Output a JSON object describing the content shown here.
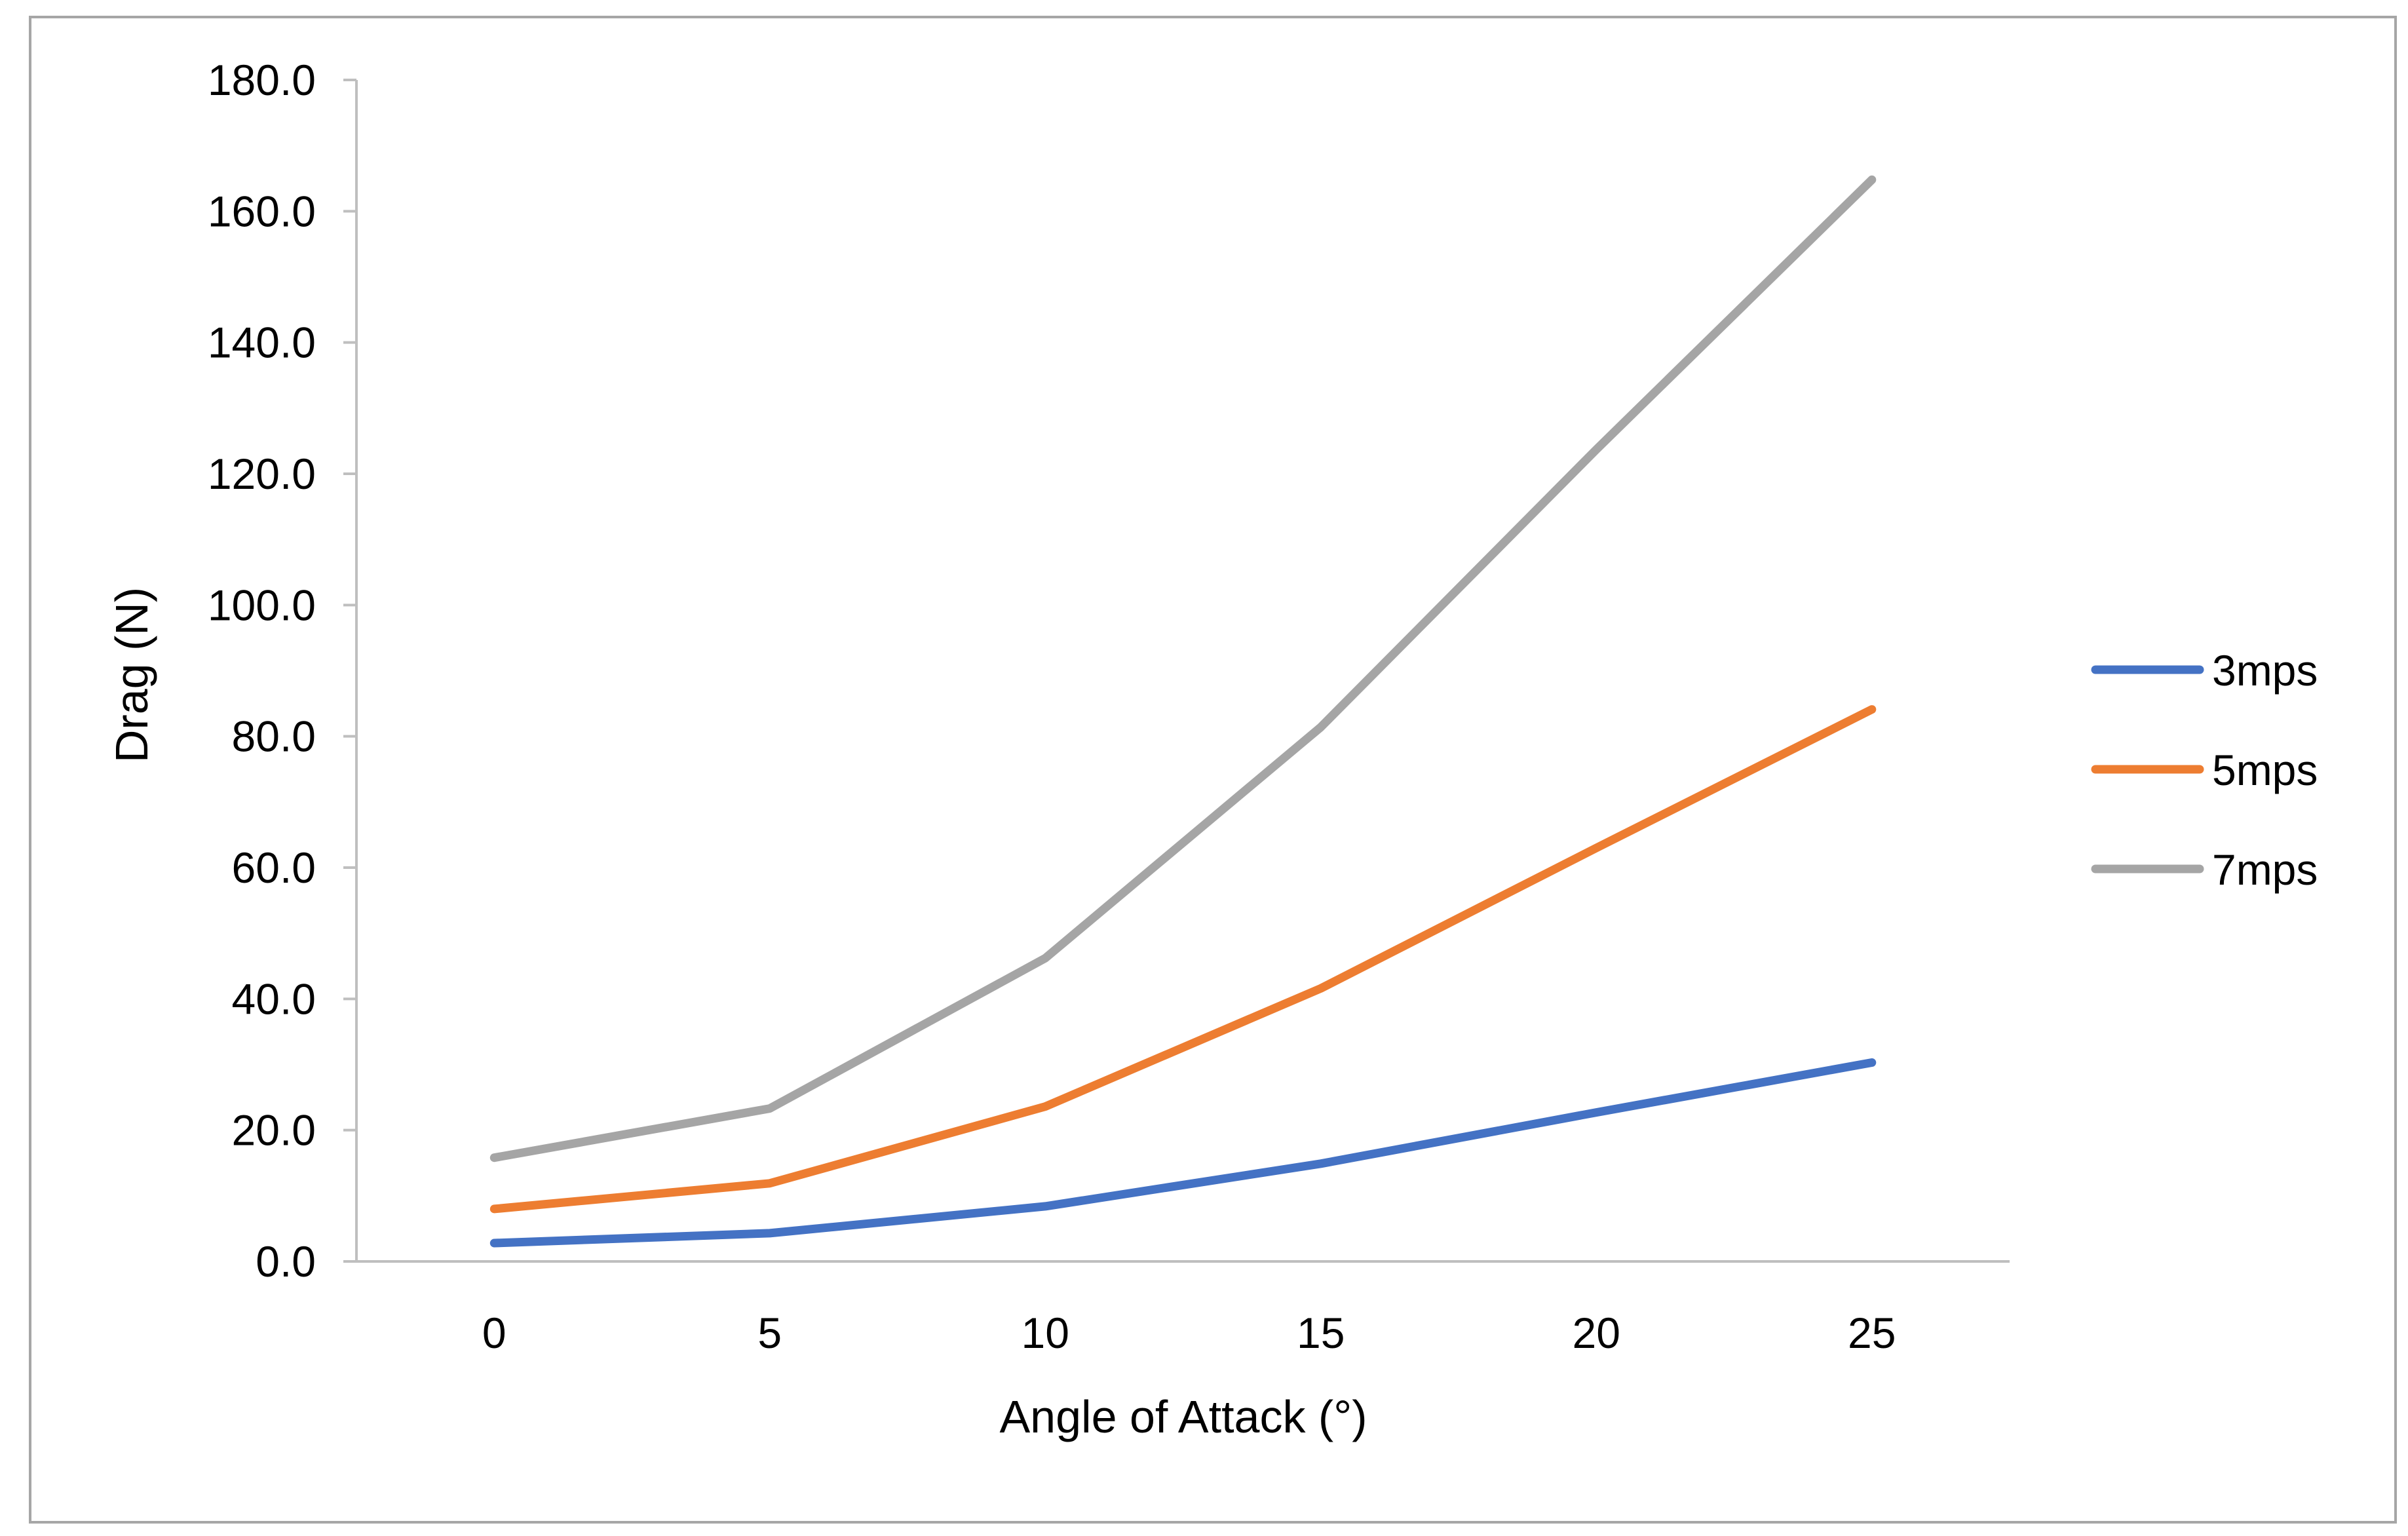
{
  "chart_data": {
    "type": "line",
    "title": "",
    "xlabel": "Angle of Attack (°)",
    "ylabel": "Drag (N)",
    "categories": [
      "0",
      "5",
      "10",
      "15",
      "20",
      "25"
    ],
    "x": [
      0,
      5,
      10,
      15,
      20,
      25
    ],
    "ylim": [
      0,
      180
    ],
    "yticks": [
      "0.0",
      "20.0",
      "40.0",
      "60.0",
      "80.0",
      "100.0",
      "120.0",
      "140.0",
      "160.0",
      "180.0"
    ],
    "grid": false,
    "legend_position": "right",
    "series": [
      {
        "name": "3mps",
        "color": "#4472C4",
        "values": [
          2.8,
          4.3,
          8.4,
          14.9,
          22.7,
          30.3
        ]
      },
      {
        "name": "5mps",
        "color": "#ED7D31",
        "values": [
          8.0,
          11.9,
          23.6,
          41.6,
          63.0,
          84.1
        ]
      },
      {
        "name": "7mps",
        "color": "#A5A5A5",
        "values": [
          15.8,
          23.3,
          46.2,
          81.4,
          123.7,
          164.8
        ]
      }
    ]
  },
  "colors": {
    "axis": "#bfbfbf",
    "frame": "#a6a6a6"
  }
}
